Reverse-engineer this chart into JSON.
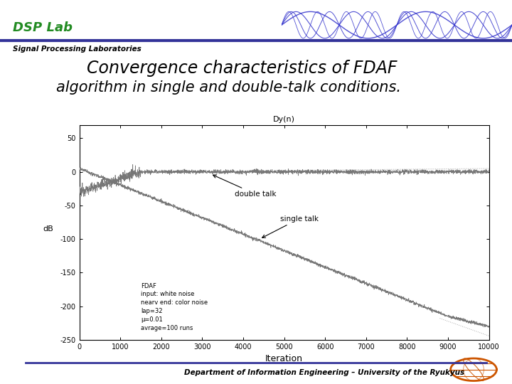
{
  "title_line1": "Convergence characteristics of FDAF",
  "title_line2": "algorithm in single and double-talk conditions.",
  "dsp_lab_text": "DSP Lab",
  "signal_proc_text": "Signal Processing Laboratories",
  "dept_text": "Department of Information Engineering – University of the Ryukyus",
  "plot_title": "Dy(n)",
  "xlabel": "Iteration",
  "ylabel": "dB",
  "xlim": [
    0,
    10000
  ],
  "ylim": [
    -250,
    70
  ],
  "yticks": [
    50,
    0,
    -50,
    -100,
    -150,
    -200,
    -250
  ],
  "xticks": [
    0,
    1000,
    2000,
    3000,
    4000,
    5000,
    6000,
    7000,
    8000,
    9000,
    10000
  ],
  "xtick_labels": [
    "0",
    "1000",
    "2000",
    "3000",
    "4000",
    "5000",
    "6000",
    "7000",
    "8000",
    "9000",
    "10000"
  ],
  "double_talk_label": "double talk",
  "single_talk_label": "single talk",
  "annotation_text": "FDAF\ninput: white noise\nnearv end: color noise\nlap=32\nμ=0.01\navrage=100 runs",
  "bg_color": "#ffffff",
  "dsp_lab_color": "#228B22",
  "header_line_color": "#333399",
  "wave_color": "#3333cc",
  "line_color": "#888888",
  "font_color": "#000000"
}
